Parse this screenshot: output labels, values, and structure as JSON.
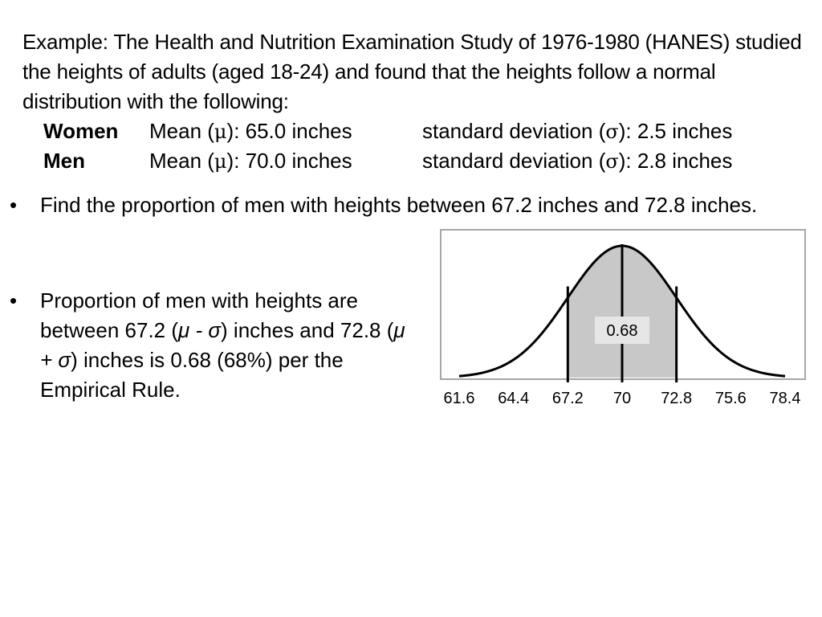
{
  "intro": {
    "text": "Example: The Health and Nutrition Examination Study of 1976-1980 (HANES) studied the heights of adults (aged 18-24) and found that the heights follow a normal distribution with the following:"
  },
  "stats": [
    {
      "group": "Women",
      "mean_prefix": "Mean (",
      "mean_sym": "μ",
      "mean_suffix": "): 65.0 inches",
      "sd_prefix": "standard deviation (",
      "sd_sym": "σ",
      "sd_suffix": "): 2.5 inches"
    },
    {
      "group": "Men",
      "mean_prefix": "Mean (",
      "mean_sym": "μ",
      "mean_suffix": "): 70.0 inches",
      "sd_prefix": "standard deviation (",
      "sd_sym": "σ",
      "sd_suffix": "): 2.8 inches"
    }
  ],
  "bullets": [
    {
      "marker": "•",
      "text": "Find the proportion of men with heights between 67.2 inches and 72.8 inches."
    },
    {
      "marker": "•",
      "parts": [
        "Proportion of men with heights are between 67.2 (",
        "μ - σ",
        ") inches and  72.8 (",
        "μ + σ",
        ") inches is 0.68 (68%) per the Empirical Rule."
      ]
    }
  ],
  "chart_data": {
    "type": "area",
    "distribution": "normal",
    "mean": 70,
    "sd": 2.8,
    "x_ticks": [
      61.6,
      64.4,
      67.2,
      70,
      72.8,
      75.6,
      78.4
    ],
    "xlim": [
      61.6,
      78.4
    ],
    "shaded_range": [
      67.2,
      72.8
    ],
    "vertical_lines": [
      67.2,
      70,
      72.8
    ],
    "annotation": "0.68",
    "colors": {
      "shade": "#c8c8c8",
      "curve": "#000000",
      "frame": "#a6a6a6",
      "label_box": "#e6e6e6"
    }
  }
}
